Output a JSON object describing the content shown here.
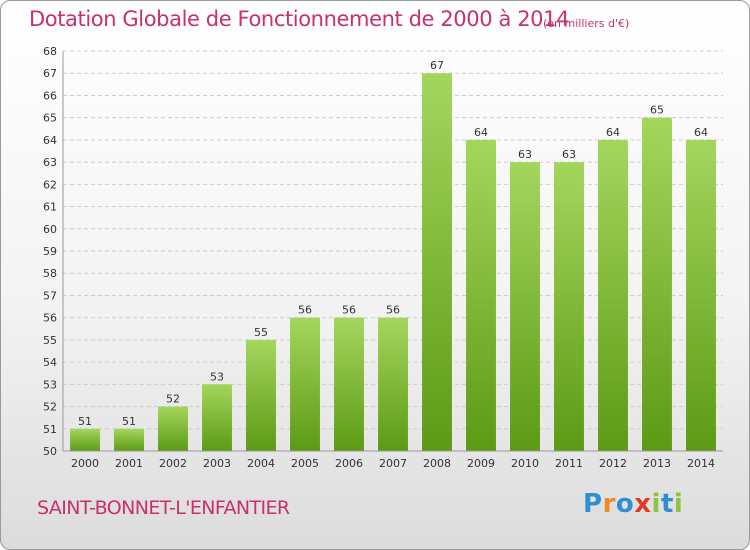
{
  "header": {
    "title": "Dotation Globale de Fonctionnement de 2000 à 2014",
    "unit": "(en milliers d'€)"
  },
  "footer": {
    "commune": "SAINT-BONNET-L'ENFANTIER",
    "logo": "Proxiti"
  },
  "colors": {
    "title": "#c8306e",
    "bar_top": "#a4d65e",
    "bar_bottom": "#5c9a14"
  },
  "chart_data": {
    "type": "bar",
    "categories": [
      "2000",
      "2001",
      "2002",
      "2003",
      "2004",
      "2005",
      "2006",
      "2007",
      "2008",
      "2009",
      "2010",
      "2011",
      "2012",
      "2013",
      "2014"
    ],
    "values": [
      51,
      51,
      52,
      53,
      55,
      56,
      56,
      56,
      67,
      64,
      63,
      63,
      64,
      65,
      64
    ],
    "title": "Dotation Globale de Fonctionnement de 2000 à 2014",
    "ylim": [
      50,
      68
    ],
    "yticks": [
      50,
      51,
      52,
      53,
      54,
      55,
      56,
      57,
      58,
      59,
      60,
      61,
      62,
      63,
      64,
      65,
      66,
      67,
      68
    ],
    "grid": true
  }
}
